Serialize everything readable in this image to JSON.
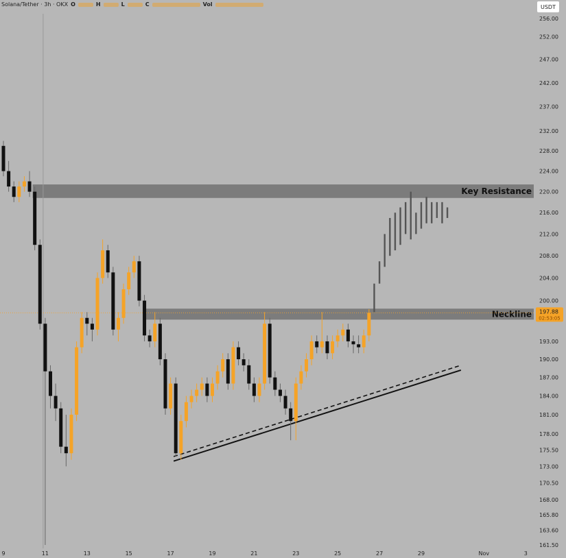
{
  "header": {
    "symbol": "Solana/Tether · 3h · OKX",
    "o_label": "O",
    "h_label": "H",
    "l_label": "L",
    "c_label": "C",
    "vol_label": "Vol"
  },
  "currency_badge": "USDT",
  "colors": {
    "up": "#f5a327",
    "down": "#111111",
    "projection": "#555555",
    "zone": "#7c7c7c",
    "last_price": "#f5a327",
    "background": "#b7b7b7"
  },
  "chart_data": {
    "type": "candlestick",
    "x_unit": "day of October (Nov 1 = 32)",
    "y_scale": "log",
    "ylim": [
      161.5,
      256
    ],
    "y_ticks": [
      "256.00",
      "252.00",
      "247.00",
      "242.00",
      "237.00",
      "232.00",
      "228.00",
      "224.00",
      "220.00",
      "216.00",
      "212.00",
      "208.00",
      "204.00",
      "200.00",
      "193.00",
      "190.00",
      "187.00",
      "184.00",
      "181.00",
      "178.00",
      "175.50",
      "173.00",
      "170.50",
      "168.00",
      "165.80",
      "163.60",
      "161.50"
    ],
    "x_ticks": [
      {
        "label": "9",
        "day": 9
      },
      {
        "label": "11",
        "day": 11
      },
      {
        "label": "13",
        "day": 13
      },
      {
        "label": "15",
        "day": 15
      },
      {
        "label": "17",
        "day": 17
      },
      {
        "label": "19",
        "day": 19
      },
      {
        "label": "21",
        "day": 21
      },
      {
        "label": "23",
        "day": 23
      },
      {
        "label": "25",
        "day": 25
      },
      {
        "label": "27",
        "day": 27
      },
      {
        "label": "29",
        "day": 29
      },
      {
        "label": "Nov",
        "day": 32
      },
      {
        "label": "3",
        "day": 34
      }
    ],
    "candle_fields": [
      "day",
      "open",
      "high",
      "low",
      "close"
    ],
    "candles": [
      [
        9.0,
        229,
        230,
        223,
        224
      ],
      [
        9.25,
        224,
        226,
        220,
        221
      ],
      [
        9.5,
        221,
        222,
        218,
        219
      ],
      [
        9.75,
        219,
        222,
        218,
        221
      ],
      [
        10.0,
        221,
        223,
        220,
        222
      ],
      [
        10.25,
        222,
        224,
        219,
        220
      ],
      [
        10.5,
        220,
        221,
        209,
        210
      ],
      [
        10.75,
        210,
        211,
        195,
        196
      ],
      [
        11.0,
        196,
        197,
        161.5,
        188
      ],
      [
        11.25,
        188,
        189,
        182,
        184
      ],
      [
        11.5,
        184,
        186,
        180,
        182
      ],
      [
        11.75,
        182,
        183,
        175,
        176
      ],
      [
        12.0,
        176,
        181,
        173,
        175
      ],
      [
        12.25,
        175,
        182,
        174,
        181
      ],
      [
        12.5,
        181,
        193,
        180,
        192
      ],
      [
        12.75,
        192,
        198,
        191,
        197
      ],
      [
        13.0,
        197,
        198,
        194,
        196
      ],
      [
        13.25,
        196,
        197,
        193,
        195
      ],
      [
        13.5,
        195,
        205,
        194,
        204
      ],
      [
        13.75,
        204,
        211,
        203,
        209
      ],
      [
        14.0,
        209,
        210,
        204,
        205
      ],
      [
        14.25,
        205,
        206,
        194,
        195
      ],
      [
        14.5,
        195,
        198,
        193,
        197
      ],
      [
        14.75,
        197,
        203,
        196,
        202
      ],
      [
        15.0,
        202,
        206,
        201,
        205
      ],
      [
        15.25,
        205,
        208,
        204,
        207
      ],
      [
        15.5,
        207,
        208,
        199,
        200
      ],
      [
        15.75,
        200,
        201,
        193,
        194
      ],
      [
        16.0,
        194,
        195,
        192,
        193
      ],
      [
        16.25,
        193,
        198,
        192,
        196
      ],
      [
        16.5,
        196,
        197,
        189,
        190
      ],
      [
        16.75,
        190,
        191,
        181,
        182
      ],
      [
        17.0,
        182,
        187,
        181,
        186
      ],
      [
        17.25,
        186,
        187,
        174.5,
        175
      ],
      [
        17.5,
        175,
        181,
        174,
        180
      ],
      [
        17.75,
        180,
        184,
        179,
        183
      ],
      [
        18.0,
        183,
        185,
        182,
        184
      ],
      [
        18.25,
        184,
        186,
        183,
        185
      ],
      [
        18.5,
        185,
        187,
        184,
        186
      ],
      [
        18.75,
        186,
        187,
        183,
        184
      ],
      [
        19.0,
        184,
        187,
        183,
        186
      ],
      [
        19.25,
        186,
        189,
        185,
        188
      ],
      [
        19.5,
        188,
        191,
        187,
        190
      ],
      [
        19.75,
        190,
        191,
        185,
        186
      ],
      [
        20.0,
        186,
        193,
        185,
        192
      ],
      [
        20.25,
        192,
        193,
        189,
        190
      ],
      [
        20.5,
        190,
        191,
        188,
        189
      ],
      [
        20.75,
        189,
        190,
        185,
        186
      ],
      [
        21.0,
        186,
        187,
        183,
        184
      ],
      [
        21.25,
        184,
        187,
        183,
        186
      ],
      [
        21.5,
        186,
        198,
        185,
        196
      ],
      [
        21.75,
        196,
        197,
        186,
        187
      ],
      [
        22.0,
        187,
        188,
        184,
        185
      ],
      [
        22.25,
        185,
        186,
        183,
        184
      ],
      [
        22.5,
        184,
        185,
        181,
        182
      ],
      [
        22.75,
        182,
        183,
        177,
        180
      ],
      [
        23.0,
        180,
        187,
        177,
        186
      ],
      [
        23.25,
        186,
        189,
        185,
        188
      ],
      [
        23.5,
        188,
        191,
        187,
        190
      ],
      [
        23.75,
        190,
        194,
        189,
        193
      ],
      [
        24.0,
        193,
        194,
        191,
        192
      ],
      [
        24.25,
        192,
        198,
        191,
        193
      ],
      [
        24.5,
        193,
        194,
        190,
        191
      ],
      [
        24.75,
        191,
        194,
        190,
        193
      ],
      [
        25.0,
        193,
        195,
        192,
        194
      ],
      [
        25.25,
        194,
        196,
        193,
        195
      ],
      [
        25.5,
        195,
        196,
        192,
        193
      ],
      [
        25.75,
        193,
        194,
        191,
        192.5
      ],
      [
        26.0,
        192.5,
        194,
        191,
        192
      ],
      [
        26.25,
        192,
        195,
        191,
        194
      ],
      [
        26.5,
        194,
        198.5,
        193,
        197.88
      ]
    ],
    "projection_fields": [
      "day",
      "low",
      "high"
    ],
    "projection": [
      [
        26.75,
        198,
        203
      ],
      [
        27.0,
        203,
        207
      ],
      [
        27.25,
        206,
        212
      ],
      [
        27.5,
        208,
        215
      ],
      [
        27.75,
        209,
        216
      ],
      [
        28.0,
        210,
        217
      ],
      [
        28.25,
        212,
        218
      ],
      [
        28.5,
        211,
        220
      ],
      [
        28.75,
        212,
        216
      ],
      [
        29.0,
        213,
        218
      ],
      [
        29.25,
        214,
        219
      ],
      [
        29.5,
        214,
        218
      ],
      [
        29.75,
        215,
        218
      ],
      [
        30.0,
        214,
        218
      ],
      [
        30.25,
        215,
        217
      ]
    ],
    "zones": [
      {
        "label": "Key Resistance",
        "low": 218.8,
        "high": 221.4,
        "from_day": 10.4
      },
      {
        "label": "Neckline",
        "low": 196.7,
        "high": 198.6,
        "from_day": 15.7
      }
    ],
    "trendlines": [
      {
        "style": "solid",
        "from": [
          17.15,
          173.8
        ],
        "to": [
          30.9,
          188.2
        ]
      },
      {
        "style": "dashed",
        "from": [
          17.15,
          174.5
        ],
        "to": [
          30.9,
          189.0
        ]
      }
    ],
    "last_price": "197.88",
    "countdown": "02:53:05",
    "crosshair_day": 10.9
  }
}
